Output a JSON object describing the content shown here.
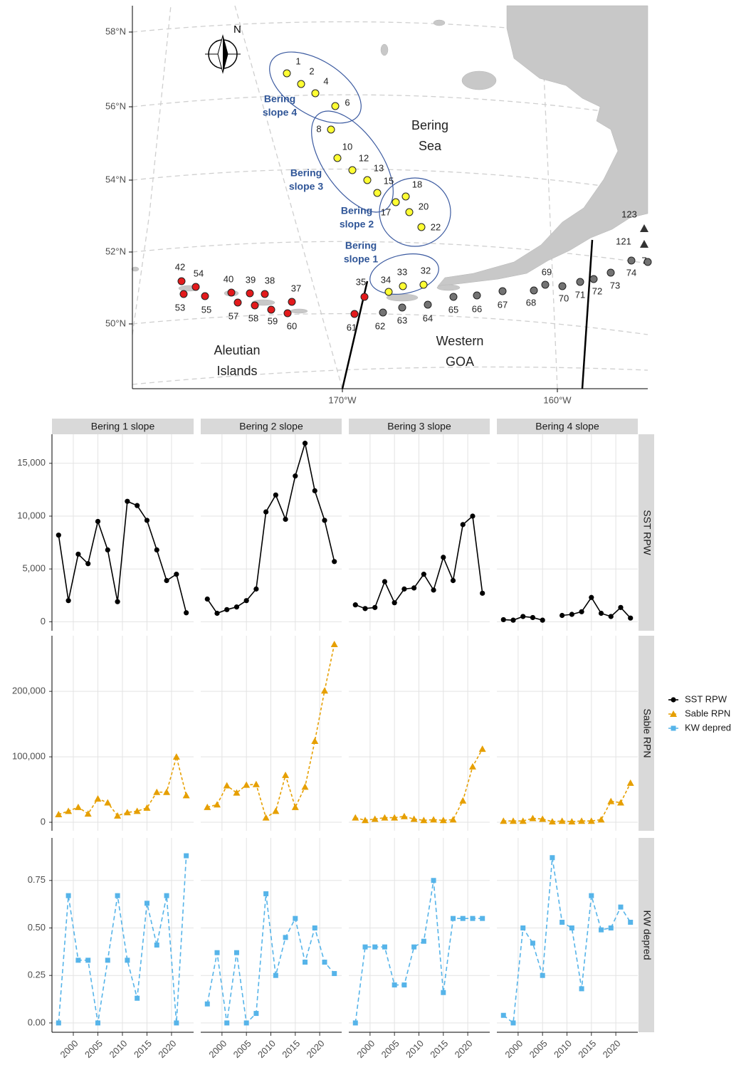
{
  "map": {
    "compass": "N",
    "lat_labels": [
      "58°N",
      "56°N",
      "54°N",
      "52°N",
      "50°N"
    ],
    "lon_labels": [
      "170°W",
      "160°W"
    ],
    "regions": [
      {
        "lines": [
          "Bering",
          "slope 4"
        ]
      },
      {
        "lines": [
          "Bering",
          "slope 3"
        ]
      },
      {
        "lines": [
          "Bering",
          "slope 2"
        ]
      },
      {
        "lines": [
          "Bering",
          "slope 1"
        ]
      }
    ],
    "places": [
      {
        "lines": [
          "Bering",
          "Sea"
        ]
      },
      {
        "lines": [
          "Aleutian",
          "Islands"
        ]
      },
      {
        "lines": [
          "Western",
          "GOA"
        ]
      }
    ],
    "station_groups": [
      {
        "color": "#ffff33",
        "labels": [
          "1",
          "2",
          "4",
          "6",
          "8",
          "10",
          "12",
          "13",
          "15",
          "17",
          "18",
          "20",
          "22",
          "34",
          "33",
          "32"
        ]
      },
      {
        "color": "#e31a1c",
        "labels": [
          "42",
          "54",
          "40",
          "39",
          "38",
          "37",
          "53",
          "55",
          "57",
          "58",
          "59",
          "60",
          "35",
          "61"
        ]
      },
      {
        "color": "#737373",
        "labels": [
          "62",
          "63",
          "64",
          "65",
          "66",
          "67",
          "68",
          "69",
          "70",
          "71",
          "72",
          "73",
          "74",
          "7",
          "121",
          "123"
        ]
      }
    ]
  },
  "chart_data": {
    "type": "line",
    "facet_columns": [
      "Bering 1 slope",
      "Bering 2 slope",
      "Bering 3 slope",
      "Bering 4 slope"
    ],
    "x": [
      1997,
      1999,
      2001,
      2003,
      2005,
      2007,
      2009,
      2011,
      2013,
      2015,
      2017,
      2019,
      2021,
      2023
    ],
    "xlim": [
      1995.65,
      2024.5
    ],
    "xticks": [
      2000,
      2005,
      2010,
      2015,
      2020
    ],
    "grid": true,
    "legend": "right",
    "series": [
      {
        "name": "SST RPW",
        "color": "#000000",
        "marker": "circle",
        "dash": "solid",
        "ylim": [
          -850,
          17750
        ],
        "yticks": [
          0,
          {
            "value": 5000,
            "label": "5,000"
          },
          {
            "value": 10000,
            "label": "10,000"
          },
          {
            "value": 15000,
            "label": "15,000"
          }
        ],
        "values": [
          [
            8200,
            2000,
            6400,
            5500,
            9500,
            6800,
            1900,
            11400,
            11000,
            9600,
            6800,
            3900,
            4500,
            850
          ],
          [
            2150,
            800,
            1150,
            1400,
            2000,
            3100,
            10400,
            12000,
            9700,
            13800,
            16900,
            12400,
            9600,
            5700
          ],
          [
            1600,
            1250,
            1350,
            3800,
            1800,
            3100,
            3200,
            4500,
            3000,
            6100,
            3900,
            9200,
            10000,
            2700
          ],
          [
            200,
            150,
            500,
            400,
            150,
            null,
            600,
            700,
            950,
            2300,
            800,
            500,
            1350,
            350
          ]
        ]
      },
      {
        "name": "Sable RPN",
        "color": "#e69f00",
        "marker": "triangle",
        "dash": "dotted",
        "ylim": [
          -13000,
          285000
        ],
        "yticks": [
          0,
          {
            "value": 100000,
            "label": "100,000"
          },
          {
            "value": 200000,
            "label": "200,000"
          }
        ],
        "values": [
          [
            12000,
            17000,
            23000,
            13000,
            36000,
            30000,
            10000,
            15000,
            17000,
            22000,
            46000,
            46000,
            100000,
            41000
          ],
          [
            23000,
            27000,
            56000,
            45000,
            57000,
            58000,
            7000,
            17000,
            72000,
            23000,
            54000,
            124000,
            201000,
            272000
          ],
          [
            7000,
            3000,
            5000,
            7000,
            7000,
            9000,
            5000,
            3000,
            4000,
            3000,
            4000,
            33000,
            85000,
            112000
          ],
          [
            2000,
            2000,
            2000,
            6000,
            5000,
            1000,
            2000,
            1000,
            2000,
            2000,
            4000,
            32000,
            30000,
            60000
          ]
        ]
      },
      {
        "name": "KW depred",
        "color": "#56b4e9",
        "marker": "square",
        "dash": "dashed",
        "ylim": [
          -0.049,
          0.974
        ],
        "yticks": [
          {
            "value": 0,
            "label": "0.00"
          },
          0.25,
          {
            "value": 0.5,
            "label": "0.50"
          },
          0.75
        ],
        "values": [
          [
            0,
            0.67,
            0.33,
            0.33,
            0,
            0.33,
            0.67,
            0.33,
            0.13,
            0.63,
            0.41,
            0.67,
            0,
            0.88
          ],
          [
            0.1,
            0.37,
            0,
            0.37,
            0,
            0.05,
            0.68,
            0.25,
            0.45,
            0.55,
            0.32,
            0.5,
            0.32,
            0.26
          ],
          [
            0,
            0.4,
            0.4,
            0.4,
            0.2,
            0.2,
            0.4,
            0.43,
            0.75,
            0.16,
            0.55,
            0.55,
            0.55,
            0.55
          ],
          [
            0.04,
            0,
            0.5,
            0.42,
            0.25,
            0.87,
            0.53,
            0.5,
            0.18,
            0.67,
            0.49,
            0.5,
            0.61,
            0.53
          ]
        ]
      }
    ]
  }
}
